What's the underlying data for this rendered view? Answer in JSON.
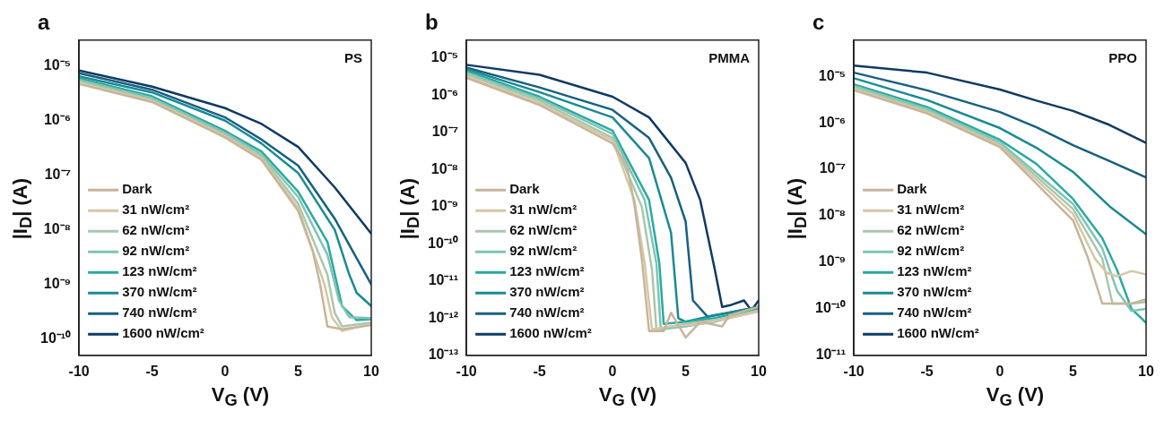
{
  "chart_data": [
    {
      "type": "line",
      "title": "a",
      "annotations": [
        "PS"
      ],
      "xlabel": "V$_{G}$ (V)",
      "ylabel": "|I$_{D}$| (A)",
      "log": "y",
      "legend": "bottom left",
      "grid": false,
      "marker": "none",
      "line_style": "solid",
      "xlim": [
        -10,
        10
      ],
      "xticks": [
        -10,
        -5,
        0,
        5,
        10
      ],
      "ylim": [
        5e-11,
        3e-05
      ],
      "yticks": [
        {
          "value": 1e-10,
          "label": "10⁻¹⁰"
        },
        {
          "value": 1e-09,
          "label": "10⁻⁹"
        },
        {
          "value": 1e-08,
          "label": "10⁻⁸"
        },
        {
          "value": 1e-07,
          "label": "10⁻⁷"
        },
        {
          "value": 1e-06,
          "label": "10⁻⁶"
        },
        {
          "value": 1e-05,
          "label": "10⁻⁵"
        }
      ],
      "series": [
        {
          "name": "Dark",
          "color": "#c8b49a",
          "x": [
            -10,
            -5,
            0,
            2.5,
            5,
            6,
            6.5,
            7,
            8,
            10
          ],
          "values": [
            4.7e-06,
            2.2e-06,
            4.9e-07,
            1.9e-07,
            2.2e-08,
            4e-09,
            1e-09,
            1.7e-10,
            1.5e-10,
            1.8e-10
          ]
        },
        {
          "name": "31 nW/cm²",
          "color": "#d6c6a6",
          "x": [
            -10,
            -5,
            0,
            2.5,
            5,
            6.8,
            7.3,
            8,
            10
          ],
          "values": [
            5e-06,
            2.3e-06,
            5.2e-07,
            2e-07,
            2.5e-08,
            1e-09,
            2.5e-10,
            1.4e-10,
            1.9e-10
          ]
        },
        {
          "name": "62 nW/cm²",
          "color": "#a9c7ad",
          "x": [
            -10,
            -5,
            0,
            2.5,
            5,
            7,
            7.5,
            8,
            10
          ],
          "values": [
            5.2e-06,
            2.4e-06,
            5.5e-07,
            2.2e-07,
            3e-08,
            1.5e-09,
            3e-10,
            1.7e-10,
            2e-10
          ]
        },
        {
          "name": "92 nW/cm²",
          "color": "#7fc4b4",
          "x": [
            -10,
            -5,
            0,
            2.5,
            5,
            7,
            7.8,
            8.5,
            10
          ],
          "values": [
            5.6e-06,
            2.6e-06,
            6e-07,
            2.4e-07,
            4e-08,
            3.5e-09,
            5e-10,
            2.5e-10,
            2.4e-10
          ]
        },
        {
          "name": "123 nW/cm²",
          "color": "#2aa9a2",
          "x": [
            -10,
            -5,
            0,
            2.5,
            5,
            7,
            8,
            9,
            10
          ],
          "values": [
            6e-06,
            2.8e-06,
            6.5e-07,
            2.7e-07,
            5e-08,
            6e-09,
            4e-10,
            2.2e-10,
            2.3e-10
          ]
        },
        {
          "name": "370 nW/cm²",
          "color": "#1a8a95",
          "x": [
            -10,
            -5,
            0,
            2.5,
            5,
            7.5,
            8.5,
            9,
            10
          ],
          "values": [
            6.5e-06,
            3.3e-06,
            1e-06,
            3.8e-07,
            1.1e-07,
            1e-08,
            1.5e-09,
            7e-10,
            4e-10
          ]
        },
        {
          "name": "740 nW/cm²",
          "color": "#176080",
          "x": [
            -10,
            -5,
            0,
            2.5,
            5,
            7.5,
            9,
            10
          ],
          "values": [
            7.4e-06,
            3.7e-06,
            1.15e-06,
            4.5e-07,
            1.5e-07,
            1.6e-08,
            3e-09,
            1e-09
          ]
        },
        {
          "name": "1600 nW/cm²",
          "color": "#0f3a63",
          "x": [
            -10,
            -5,
            0,
            2.5,
            5,
            7.5,
            10
          ],
          "values": [
            8.3e-06,
            4.2e-06,
            1.7e-06,
            8.7e-07,
            3.3e-07,
            6e-08,
            8.5e-09
          ]
        }
      ]
    },
    {
      "type": "line",
      "title": "b",
      "annotations": [
        "PMMA"
      ],
      "xlabel": "V$_{G}$ (V)",
      "ylabel": "|I$_{D}$| (A)",
      "log": "y",
      "legend": "bottom left",
      "grid": false,
      "marker": "none",
      "line_style": "solid",
      "xlim": [
        -10,
        10
      ],
      "xticks": [
        -10,
        -5,
        0,
        5,
        10
      ],
      "ylim": [
        1e-13,
        3e-05
      ],
      "yticks": [
        {
          "value": 1e-13,
          "label": "10⁻¹³"
        },
        {
          "value": 1e-12,
          "label": "10⁻¹²"
        },
        {
          "value": 1e-11,
          "label": "10⁻¹¹"
        },
        {
          "value": 1e-10,
          "label": "10⁻¹⁰"
        },
        {
          "value": 1e-09,
          "label": "10⁻⁹"
        },
        {
          "value": 1e-08,
          "label": "10⁻⁸"
        },
        {
          "value": 1e-07,
          "label": "10⁻⁷"
        },
        {
          "value": 1e-06,
          "label": "10⁻⁶"
        },
        {
          "value": 1e-05,
          "label": "10⁻⁵"
        }
      ],
      "series": [
        {
          "name": "Dark",
          "color": "#c8b49a",
          "x": [
            -10,
            -5,
            0,
            1,
            1.5,
            2,
            2.5,
            3.5,
            4,
            5,
            6,
            7.5,
            8,
            10
          ],
          "values": [
            2.9e-06,
            5.4e-07,
            5e-08,
            1.2e-08,
            1.1e-09,
            4e-11,
            4.5e-13,
            4.5e-13,
            1.4e-12,
            3e-13,
            8e-13,
            6e-13,
            1.2e-12,
            2e-12
          ]
        },
        {
          "name": "31 nW/cm²",
          "color": "#d6c6a6",
          "x": [
            -10,
            -5,
            0,
            1.5,
            2.2,
            2.7,
            4,
            6,
            8,
            10
          ],
          "values": [
            3.2e-06,
            6e-07,
            6e-08,
            1.5e-09,
            3e-11,
            5e-13,
            6e-13,
            7e-13,
            1e-12,
            1.5e-12
          ]
        },
        {
          "name": "62 nW/cm²",
          "color": "#a9c7ad",
          "x": [
            -10,
            -5,
            0,
            2,
            2.7,
            3,
            5,
            7,
            10
          ],
          "values": [
            3.6e-06,
            7e-07,
            7e-08,
            1e-09,
            2e-11,
            5e-13,
            7e-13,
            9e-13,
            1.6e-12
          ]
        },
        {
          "name": "92 nW/cm²",
          "color": "#7fc4b4",
          "x": [
            -10,
            -5,
            0,
            2.2,
            3,
            3.3,
            5,
            7,
            10
          ],
          "values": [
            4e-06,
            8e-07,
            9e-08,
            1.5e-09,
            3e-11,
            5e-13,
            6e-13,
            8e-13,
            1.6e-12
          ]
        },
        {
          "name": "123 nW/cm²",
          "color": "#2aa9a2",
          "x": [
            -10,
            -5,
            0,
            2.5,
            3.2,
            3.5,
            5,
            7,
            10
          ],
          "values": [
            4.5e-06,
            9e-07,
            1.1e-07,
            1.5e-09,
            3e-11,
            7e-13,
            8e-13,
            1e-12,
            1.8e-12
          ]
        },
        {
          "name": "370 nW/cm²",
          "color": "#1a8a95",
          "x": [
            -10,
            -5,
            0,
            2.5,
            4,
            4.5,
            5,
            7,
            10
          ],
          "values": [
            5e-06,
            1.2e-06,
            2.5e-07,
            2e-08,
            2e-10,
            1e-12,
            8e-13,
            1.2e-12,
            2e-12
          ]
        },
        {
          "name": "740 nW/cm²",
          "color": "#176080",
          "x": [
            -10,
            -5,
            0,
            2.5,
            4,
            5,
            5.5,
            6.5,
            8,
            10
          ],
          "values": [
            5.5e-06,
            1.6e-06,
            4e-07,
            7e-08,
            6e-09,
            4e-10,
            3e-12,
            1.1e-12,
            1.4e-12,
            2e-12
          ]
        },
        {
          "name": "1600 nW/cm²",
          "color": "#0f3a63",
          "x": [
            -10,
            -5,
            0,
            2.5,
            5,
            6,
            7,
            7.5,
            8,
            9,
            9.5,
            10
          ],
          "values": [
            6.5e-06,
            3.5e-06,
            9e-07,
            2.5e-07,
            1.5e-08,
            1.5e-09,
            2e-11,
            2e-12,
            2.2e-12,
            3e-12,
            1.6e-12,
            3e-12
          ]
        }
      ]
    },
    {
      "type": "line",
      "title": "c",
      "annotations": [
        "PPO"
      ],
      "xlabel": "V$_{G}$ (V)",
      "ylabel": "|I$_{D}$| (A)",
      "log": "y",
      "legend": "bottom left",
      "grid": false,
      "marker": "none",
      "line_style": "solid",
      "xlim": [
        -10,
        10
      ],
      "xticks": [
        -10,
        -5,
        0,
        5,
        10
      ],
      "ylim": [
        1e-11,
        6e-05
      ],
      "yticks": [
        {
          "value": 1e-11,
          "label": "10⁻¹¹"
        },
        {
          "value": 1e-10,
          "label": "10⁻¹⁰"
        },
        {
          "value": 1e-09,
          "label": "10⁻⁹"
        },
        {
          "value": 1e-08,
          "label": "10⁻⁸"
        },
        {
          "value": 1e-07,
          "label": "10⁻⁷"
        },
        {
          "value": 1e-06,
          "label": "10⁻⁶"
        },
        {
          "value": 1e-05,
          "label": "10⁻⁵"
        }
      ],
      "series": [
        {
          "name": "Dark",
          "color": "#c8b49a",
          "x": [
            -10,
            -5,
            0,
            5,
            6,
            7,
            8,
            9,
            10
          ],
          "values": [
            5e-06,
            1.6e-06,
            3e-07,
            8e-09,
            1.3e-09,
            1.3e-10,
            1.3e-10,
            1.3e-10,
            1.6e-10
          ]
        },
        {
          "name": "31 nW/cm²",
          "color": "#d6c6a6",
          "x": [
            -10,
            -5,
            0,
            5,
            6.5,
            7.3,
            8,
            9,
            10
          ],
          "values": [
            5.3e-06,
            1.7e-06,
            3.2e-07,
            1.1e-08,
            1.2e-09,
            6e-10,
            5e-10,
            6.5e-10,
            5.5e-10
          ]
        },
        {
          "name": "62 nW/cm²",
          "color": "#a9c7ad",
          "x": [
            -10,
            -5,
            0,
            5,
            7,
            7.7,
            9,
            10
          ],
          "values": [
            5.8e-06,
            1.8e-06,
            3.5e-07,
            1.4e-08,
            1.2e-09,
            1.3e-10,
            1.3e-10,
            1.4e-10
          ]
        },
        {
          "name": "92 nW/cm²",
          "color": "#7fc4b4",
          "x": [
            -10,
            -5,
            0,
            5,
            7,
            8,
            8.5,
            9,
            10
          ],
          "values": [
            6.2e-06,
            2e-06,
            3.8e-07,
            1.8e-08,
            2e-09,
            2.5e-10,
            1.5e-10,
            9e-11,
            1e-10
          ]
        },
        {
          "name": "123 nW/cm²",
          "color": "#2aa9a2",
          "x": [
            -10,
            -5,
            0,
            2.5,
            5,
            7,
            8,
            9,
            10
          ],
          "values": [
            6.7e-06,
            2.2e-06,
            4.3e-07,
            1.3e-07,
            2.3e-08,
            3.3e-09,
            7e-10,
            1e-10,
            5e-11
          ]
        },
        {
          "name": "370 nW/cm²",
          "color": "#1a8a95",
          "x": [
            -10,
            -5,
            0,
            2.5,
            5,
            7.5,
            10
          ],
          "values": [
            9.1e-06,
            3.1e-06,
            7.7e-07,
            2.9e-07,
            8.8e-08,
            1.6e-08,
            4e-09
          ]
        },
        {
          "name": "740 nW/cm²",
          "color": "#176080",
          "x": [
            -10,
            -5,
            0,
            2.5,
            5,
            7.5,
            10
          ],
          "values": [
            1.2e-05,
            5e-06,
            1.7e-06,
            8e-07,
            3.3e-07,
            1.5e-07,
            6.7e-08
          ]
        },
        {
          "name": "1600 nW/cm²",
          "color": "#0f3a63",
          "x": [
            -10,
            -5,
            0,
            2.5,
            5,
            7.5,
            10
          ],
          "values": [
            1.7e-05,
            1.2e-05,
            5.2e-06,
            3e-06,
            1.8e-06,
            9e-07,
            3.7e-07
          ]
        }
      ]
    }
  ]
}
